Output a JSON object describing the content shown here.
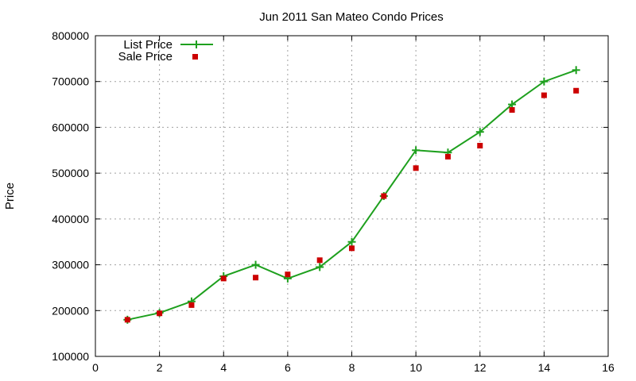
{
  "chart_data": {
    "type": "line",
    "title": "Jun 2011 San Mateo Condo Prices",
    "xlabel": "",
    "ylabel": "Price",
    "xlim": [
      0,
      16
    ],
    "ylim": [
      100000,
      800000
    ],
    "xticks": [
      0,
      2,
      4,
      6,
      8,
      10,
      12,
      14,
      16
    ],
    "yticks": [
      100000,
      200000,
      300000,
      400000,
      500000,
      600000,
      700000,
      800000
    ],
    "grid": true,
    "legend_position": "top-left",
    "series": [
      {
        "name": "List Price",
        "style": "line-with-plus-markers",
        "color": "#1ea01e",
        "x": [
          1,
          2,
          3,
          4,
          5,
          6,
          7,
          8,
          9,
          10,
          11,
          12,
          13,
          14,
          15
        ],
        "y": [
          180000,
          195000,
          220000,
          275000,
          300000,
          270000,
          295000,
          350000,
          450000,
          550000,
          545000,
          590000,
          650000,
          700000,
          725000
        ]
      },
      {
        "name": "Sale Price",
        "style": "square-markers",
        "color": "#cc0000",
        "x": [
          1,
          2,
          3,
          4,
          5,
          6,
          7,
          8,
          9,
          10,
          11,
          12,
          13,
          14,
          15
        ],
        "y": [
          180000,
          194000,
          212000,
          270000,
          272000,
          279000,
          310000,
          336000,
          450000,
          511000,
          536000,
          560000,
          638000,
          670000,
          680000
        ]
      }
    ]
  }
}
